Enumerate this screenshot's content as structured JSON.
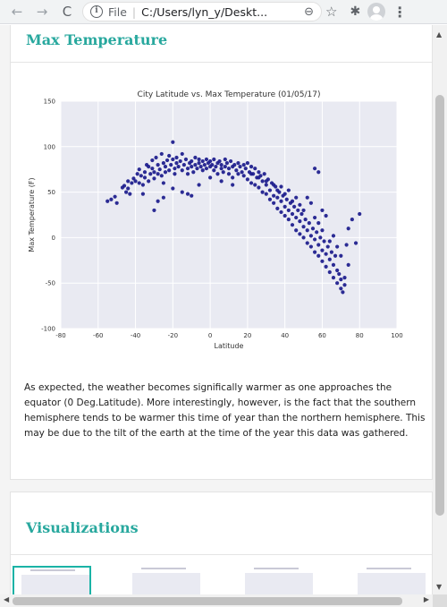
{
  "browser": {
    "back_icon": "←",
    "forward_icon": "→",
    "reload_icon": "C",
    "info_icon": "i",
    "file_label": "File",
    "separator": "|",
    "url": "C:/Users/lyn_y/Deskt...",
    "zoom_icon": "⊖",
    "star_icon": "☆",
    "extensions_icon": "✱",
    "menu_icon": "⋮"
  },
  "section1": {
    "title": "Max Temperature",
    "description": "As expected, the weather becomes significally warmer as one approaches the equator (0 Deg.Latitude). More interestingly, however, is the fact that the southern hemisphere tends to be warmer this time of year than the northern hemisphere. This may be due to the tilt of the earth at the time of the year this data was gathered."
  },
  "section2": {
    "title": "Visualizations"
  },
  "chart_data": {
    "type": "scatter",
    "title": "City Latitude vs. Max Temperature (01/05/17)",
    "xlabel": "Latitude",
    "ylabel": "Max Temperature (F)",
    "xlim": [
      -80,
      100
    ],
    "ylim": [
      -100,
      150
    ],
    "xticks": [
      -80,
      -60,
      -40,
      -20,
      0,
      20,
      40,
      60,
      80,
      100
    ],
    "yticks": [
      -100,
      -50,
      0,
      50,
      100,
      150
    ],
    "grid": true,
    "point_color": "#1a1a8c",
    "background": "#e9eaf2",
    "points": [
      [
        -55,
        40
      ],
      [
        -53,
        42
      ],
      [
        -51,
        45
      ],
      [
        -50,
        38
      ],
      [
        -47,
        55
      ],
      [
        -46,
        57
      ],
      [
        -45,
        50
      ],
      [
        -44,
        54
      ],
      [
        -43,
        48
      ],
      [
        -42,
        60
      ],
      [
        -41,
        65
      ],
      [
        -40,
        62
      ],
      [
        -39,
        70
      ],
      [
        -38,
        75
      ],
      [
        -38,
        60
      ],
      [
        -37,
        68
      ],
      [
        -36,
        58
      ],
      [
        -35,
        72
      ],
      [
        -35,
        66
      ],
      [
        -34,
        80
      ],
      [
        -33,
        78
      ],
      [
        -33,
        62
      ],
      [
        -32,
        70
      ],
      [
        -31,
        85
      ],
      [
        -31,
        76
      ],
      [
        -30,
        65
      ],
      [
        -30,
        72
      ],
      [
        -29,
        88
      ],
      [
        -28,
        80
      ],
      [
        -28,
        70
      ],
      [
        -27,
        75
      ],
      [
        -26,
        68
      ],
      [
        -26,
        92
      ],
      [
        -25,
        82
      ],
      [
        -25,
        60
      ],
      [
        -24,
        78
      ],
      [
        -24,
        72
      ],
      [
        -23,
        85
      ],
      [
        -22,
        90
      ],
      [
        -22,
        74
      ],
      [
        -21,
        80
      ],
      [
        -20,
        105
      ],
      [
        -20,
        86
      ],
      [
        -19,
        76
      ],
      [
        -19,
        70
      ],
      [
        -18,
        82
      ],
      [
        -18,
        88
      ],
      [
        -17,
        78
      ],
      [
        -16,
        84
      ],
      [
        -15,
        74
      ],
      [
        -15,
        92
      ],
      [
        -14,
        80
      ],
      [
        -13,
        86
      ],
      [
        -12,
        76
      ],
      [
        -12,
        70
      ],
      [
        -11,
        82
      ],
      [
        -10,
        84
      ],
      [
        -10,
        78
      ],
      [
        -9,
        72
      ],
      [
        -8,
        88
      ],
      [
        -8,
        80
      ],
      [
        -7,
        76
      ],
      [
        -6,
        82
      ],
      [
        -6,
        86
      ],
      [
        -5,
        78
      ],
      [
        -4,
        84
      ],
      [
        -4,
        74
      ],
      [
        -3,
        80
      ],
      [
        -2,
        86
      ],
      [
        -2,
        76
      ],
      [
        -1,
        82
      ],
      [
        0,
        78
      ],
      [
        0,
        84
      ],
      [
        1,
        80
      ],
      [
        2,
        74
      ],
      [
        2,
        86
      ],
      [
        3,
        78
      ],
      [
        4,
        82
      ],
      [
        4,
        70
      ],
      [
        5,
        84
      ],
      [
        6,
        76
      ],
      [
        6,
        80
      ],
      [
        7,
        72
      ],
      [
        8,
        86
      ],
      [
        8,
        78
      ],
      [
        9,
        82
      ],
      [
        10,
        76
      ],
      [
        10,
        70
      ],
      [
        11,
        84
      ],
      [
        12,
        78
      ],
      [
        12,
        66
      ],
      [
        13,
        80
      ],
      [
        14,
        74
      ],
      [
        15,
        82
      ],
      [
        15,
        70
      ],
      [
        16,
        78
      ],
      [
        17,
        72
      ],
      [
        18,
        80
      ],
      [
        18,
        68
      ],
      [
        19,
        76
      ],
      [
        20,
        82
      ],
      [
        20,
        64
      ],
      [
        21,
        72
      ],
      [
        22,
        78
      ],
      [
        22,
        60
      ],
      [
        23,
        70
      ],
      [
        24,
        76
      ],
      [
        24,
        58
      ],
      [
        25,
        66
      ],
      [
        26,
        72
      ],
      [
        26,
        55
      ],
      [
        27,
        68
      ],
      [
        28,
        62
      ],
      [
        28,
        50
      ],
      [
        29,
        70
      ],
      [
        30,
        58
      ],
      [
        30,
        48
      ],
      [
        31,
        64
      ],
      [
        32,
        52
      ],
      [
        32,
        42
      ],
      [
        33,
        60
      ],
      [
        34,
        46
      ],
      [
        34,
        38
      ],
      [
        35,
        56
      ],
      [
        36,
        44
      ],
      [
        36,
        32
      ],
      [
        37,
        50
      ],
      [
        38,
        40
      ],
      [
        38,
        28
      ],
      [
        39,
        46
      ],
      [
        40,
        34
      ],
      [
        40,
        24
      ],
      [
        41,
        42
      ],
      [
        42,
        30
      ],
      [
        42,
        20
      ],
      [
        43,
        38
      ],
      [
        44,
        26
      ],
      [
        44,
        14
      ],
      [
        45,
        34
      ],
      [
        46,
        22
      ],
      [
        46,
        8
      ],
      [
        47,
        30
      ],
      [
        48,
        18
      ],
      [
        48,
        4
      ],
      [
        49,
        26
      ],
      [
        50,
        12
      ],
      [
        50,
        0
      ],
      [
        51,
        20
      ],
      [
        52,
        8
      ],
      [
        52,
        -6
      ],
      [
        53,
        16
      ],
      [
        54,
        2
      ],
      [
        54,
        -10
      ],
      [
        55,
        10
      ],
      [
        56,
        -2
      ],
      [
        56,
        -16
      ],
      [
        57,
        6
      ],
      [
        58,
        -8
      ],
      [
        58,
        -20
      ],
      [
        59,
        0
      ],
      [
        60,
        -14
      ],
      [
        60,
        -26
      ],
      [
        61,
        -4
      ],
      [
        62,
        -18
      ],
      [
        62,
        -32
      ],
      [
        63,
        -10
      ],
      [
        64,
        -24
      ],
      [
        64,
        -38
      ],
      [
        65,
        -16
      ],
      [
        66,
        -30
      ],
      [
        66,
        -44
      ],
      [
        67,
        -20
      ],
      [
        68,
        -36
      ],
      [
        68,
        -50
      ],
      [
        69,
        -40
      ],
      [
        70,
        -56
      ],
      [
        70,
        -46
      ],
      [
        71,
        -60
      ],
      [
        72,
        -52
      ],
      [
        72,
        -44
      ],
      [
        73,
        -8
      ],
      [
        74,
        10
      ],
      [
        74,
        -30
      ],
      [
        76,
        20
      ],
      [
        78,
        -6
      ],
      [
        80,
        26
      ],
      [
        56,
        76
      ],
      [
        58,
        72
      ],
      [
        52,
        44
      ],
      [
        54,
        38
      ],
      [
        60,
        30
      ],
      [
        62,
        24
      ],
      [
        48,
        36
      ],
      [
        44,
        40
      ],
      [
        40,
        48
      ],
      [
        36,
        52
      ],
      [
        34,
        58
      ],
      [
        30,
        62
      ],
      [
        26,
        66
      ],
      [
        22,
        70
      ],
      [
        -28,
        40
      ],
      [
        -20,
        54
      ],
      [
        -12,
        48
      ],
      [
        -6,
        58
      ],
      [
        0,
        66
      ],
      [
        6,
        62
      ],
      [
        12,
        58
      ],
      [
        -30,
        30
      ],
      [
        -25,
        44
      ],
      [
        -15,
        50
      ],
      [
        -10,
        46
      ],
      [
        64,
        -4
      ],
      [
        66,
        2
      ],
      [
        68,
        -10
      ],
      [
        70,
        -20
      ],
      [
        58,
        16
      ],
      [
        56,
        22
      ],
      [
        60,
        8
      ],
      [
        50,
        30
      ],
      [
        46,
        44
      ],
      [
        42,
        52
      ],
      [
        38,
        56
      ],
      [
        -36,
        48
      ],
      [
        -44,
        62
      ]
    ]
  }
}
